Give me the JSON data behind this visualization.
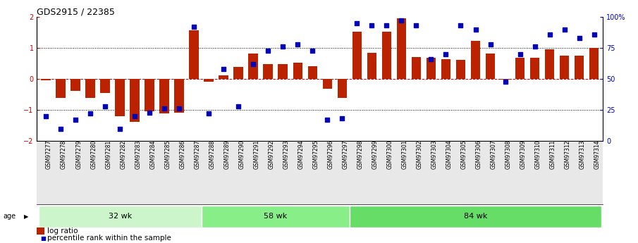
{
  "title": "GDS2915 / 22385",
  "samples": [
    "GSM97277",
    "GSM97278",
    "GSM97279",
    "GSM97280",
    "GSM97281",
    "GSM97282",
    "GSM97283",
    "GSM97284",
    "GSM97285",
    "GSM97286",
    "GSM97287",
    "GSM97288",
    "GSM97289",
    "GSM97290",
    "GSM97291",
    "GSM97292",
    "GSM97293",
    "GSM97294",
    "GSM97295",
    "GSM97296",
    "GSM97297",
    "GSM97298",
    "GSM97299",
    "GSM97300",
    "GSM97301",
    "GSM97302",
    "GSM97303",
    "GSM97304",
    "GSM97305",
    "GSM97306",
    "GSM97307",
    "GSM97308",
    "GSM97309",
    "GSM97310",
    "GSM97311",
    "GSM97312",
    "GSM97313",
    "GSM97314"
  ],
  "log_ratio": [
    -0.05,
    -0.62,
    -0.38,
    -0.62,
    -0.45,
    -1.2,
    -1.38,
    -1.05,
    -1.1,
    -1.08,
    1.58,
    -0.08,
    0.12,
    0.4,
    0.82,
    0.48,
    0.48,
    0.52,
    0.42,
    -0.32,
    -0.62,
    1.52,
    0.85,
    1.52,
    1.95,
    0.7,
    0.68,
    0.65,
    0.62,
    1.22,
    0.82,
    -0.02,
    0.68,
    0.68,
    0.95,
    0.75,
    0.75,
    1.0
  ],
  "percentile": [
    20,
    10,
    17,
    22,
    28,
    10,
    20,
    23,
    26,
    26,
    92,
    22,
    58,
    28,
    62,
    73,
    76,
    78,
    73,
    17,
    18,
    95,
    93,
    93,
    97,
    93,
    66,
    70,
    93,
    90,
    78,
    48,
    70,
    76,
    86,
    90,
    83,
    86
  ],
  "groups": [
    {
      "label": "32 wk",
      "start": 0,
      "end": 11,
      "color": "#ccf5cc"
    },
    {
      "label": "58 wk",
      "start": 11,
      "end": 21,
      "color": "#88ee88"
    },
    {
      "label": "84 wk",
      "start": 21,
      "end": 38,
      "color": "#66dd66"
    }
  ],
  "bar_color": "#bb2200",
  "dot_color": "#0000bb",
  "ylim": [
    -2,
    2
  ],
  "y2lim": [
    0,
    100
  ],
  "yticks": [
    -2,
    -1,
    0,
    1,
    2
  ],
  "y2ticks": [
    0,
    25,
    50,
    75,
    100
  ],
  "hline_dotted": [
    -1,
    1
  ],
  "hline_zero_color": "#cc0000",
  "age_label": "age",
  "legend_log": "log ratio",
  "legend_pct": "percentile rank within the sample",
  "title_fontsize": 9,
  "tick_fontsize": 5.5,
  "group_fontsize": 8,
  "legend_fontsize": 7.5
}
